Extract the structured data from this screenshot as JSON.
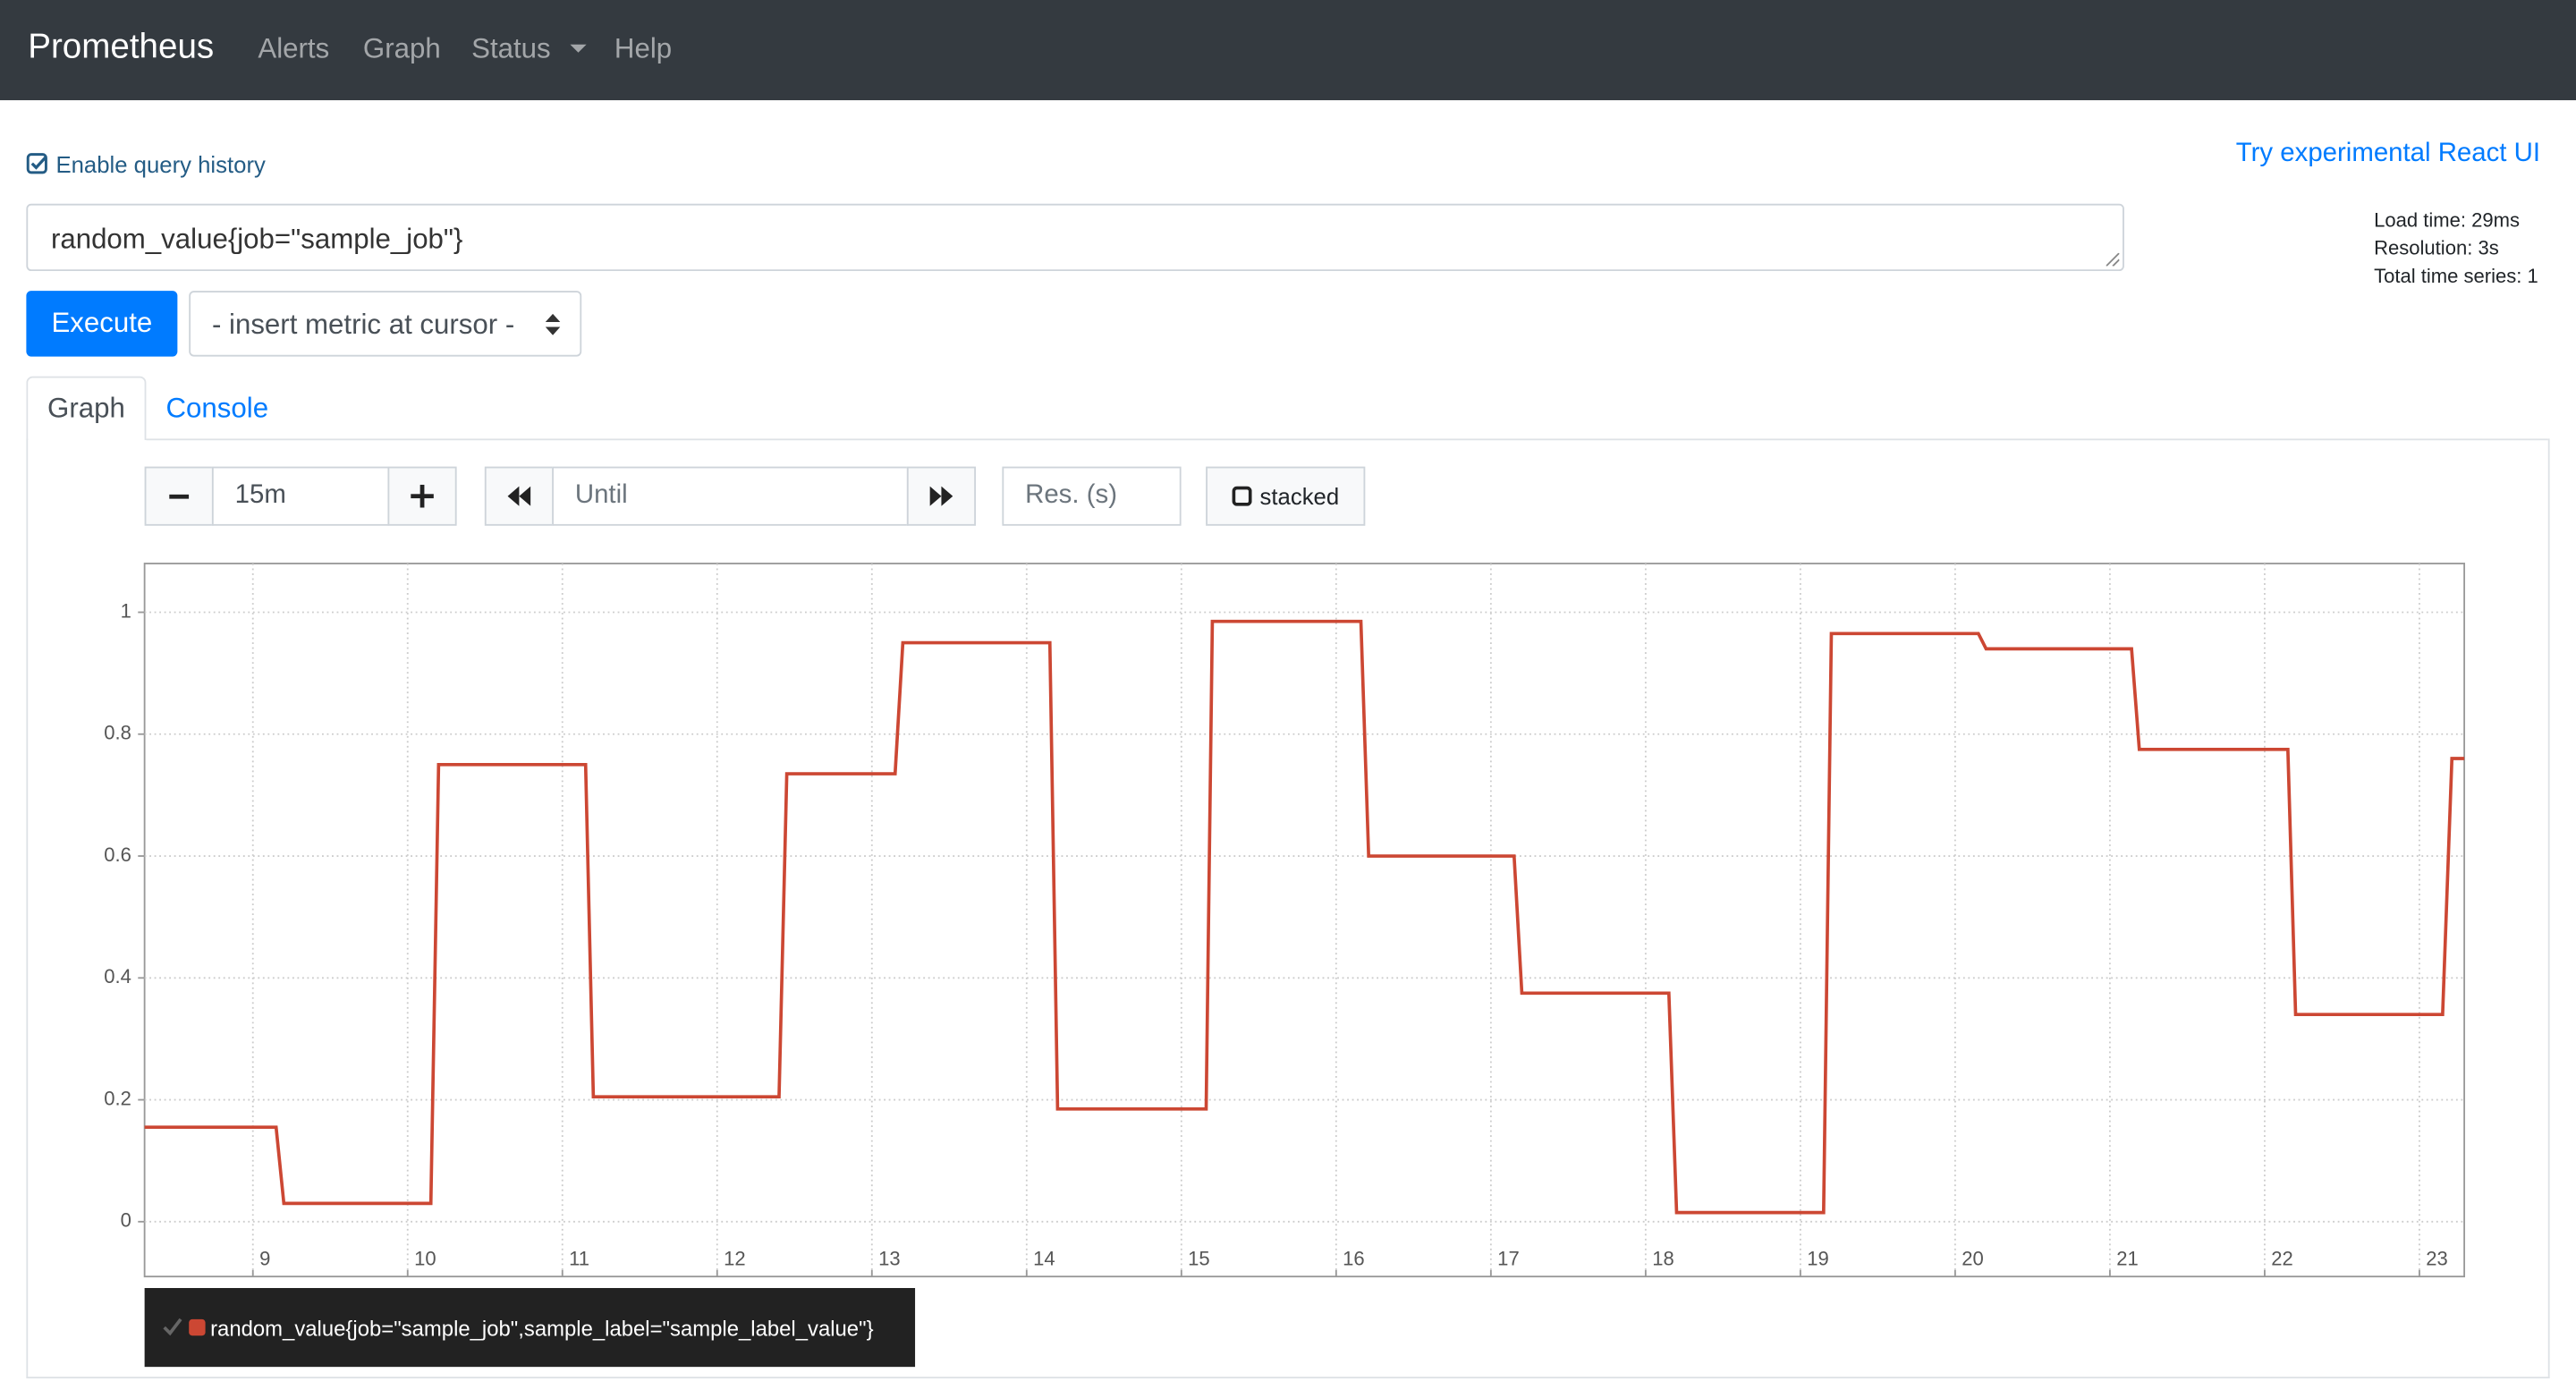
{
  "navbar": {
    "brand": "Prometheus",
    "links": [
      "Alerts",
      "Graph",
      "Status",
      "Help"
    ]
  },
  "query_history": "Enable query history",
  "react_link": "Try experimental React UI",
  "expression": "random_value{job=\"sample_job\"}",
  "stats": [
    "Load time: 29ms",
    "Resolution: 3s",
    "Total time series: 1"
  ],
  "execute": "Execute",
  "metric_select": "- insert metric at cursor -",
  "tabs": [
    "Graph",
    "Console"
  ],
  "range": "15m",
  "until_placeholder": "Until",
  "resolution_placeholder": "Res. (s)",
  "stacked": "stacked",
  "chart_data": {
    "type": "line",
    "x": [
      8.3,
      9.15,
      9.2,
      10.15,
      10.2,
      11.15,
      11.2,
      12.4,
      12.45,
      13.15,
      13.2,
      14.15,
      14.2,
      15.16,
      15.2,
      16.16,
      16.21,
      17.15,
      17.2,
      18.15,
      18.2,
      19.15,
      19.2,
      20.15,
      20.2,
      21.14,
      21.19,
      22.15,
      22.2,
      23.15,
      23.21,
      23.29
    ],
    "xlim": [
      8.3,
      23.29
    ],
    "xticks": [
      9,
      10,
      11,
      12,
      13,
      14,
      15,
      16,
      17,
      18,
      19,
      20,
      21,
      22,
      23
    ],
    "ylim": [
      -0.09,
      1.08
    ],
    "yticks": [
      0,
      0.2,
      0.4,
      0.6,
      0.8,
      1
    ],
    "grid": true,
    "series": [
      {
        "name": "random_value{job=\"sample_job\",sample_label=\"sample_label_value\"}",
        "color": "#cc4733",
        "values": [
          0.155,
          0.155,
          0.03,
          0.03,
          0.75,
          0.75,
          0.205,
          0.205,
          0.735,
          0.735,
          0.95,
          0.95,
          0.185,
          0.185,
          0.985,
          0.985,
          0.6,
          0.6,
          0.375,
          0.375,
          0.015,
          0.015,
          0.965,
          0.965,
          0.94,
          0.94,
          0.775,
          0.775,
          0.34,
          0.34,
          0.76,
          0.76
        ]
      }
    ]
  }
}
